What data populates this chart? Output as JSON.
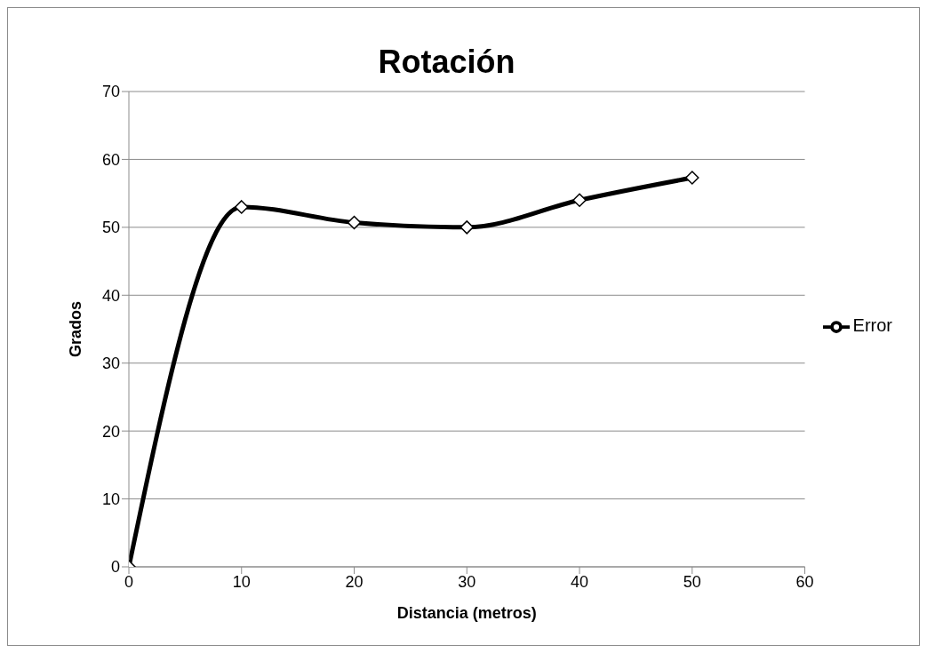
{
  "chart_data": {
    "type": "line",
    "title": "Rotación",
    "xlabel": "Distancia (metros)",
    "ylabel": "Grados",
    "x": [
      0,
      10,
      20,
      30,
      40,
      50
    ],
    "series": [
      {
        "name": "Error",
        "color": "#000000",
        "values": [
          0,
          53,
          50.7,
          50,
          54,
          57.3
        ]
      }
    ],
    "xlim": [
      0,
      60
    ],
    "xticks": [
      0,
      10,
      20,
      30,
      40,
      50,
      60
    ],
    "ylim": [
      0,
      70
    ],
    "yticks": [
      0,
      10,
      20,
      30,
      40,
      50,
      60,
      70
    ],
    "grid": "y",
    "legend": "right",
    "marker": "diamond",
    "line_style": "solid"
  }
}
